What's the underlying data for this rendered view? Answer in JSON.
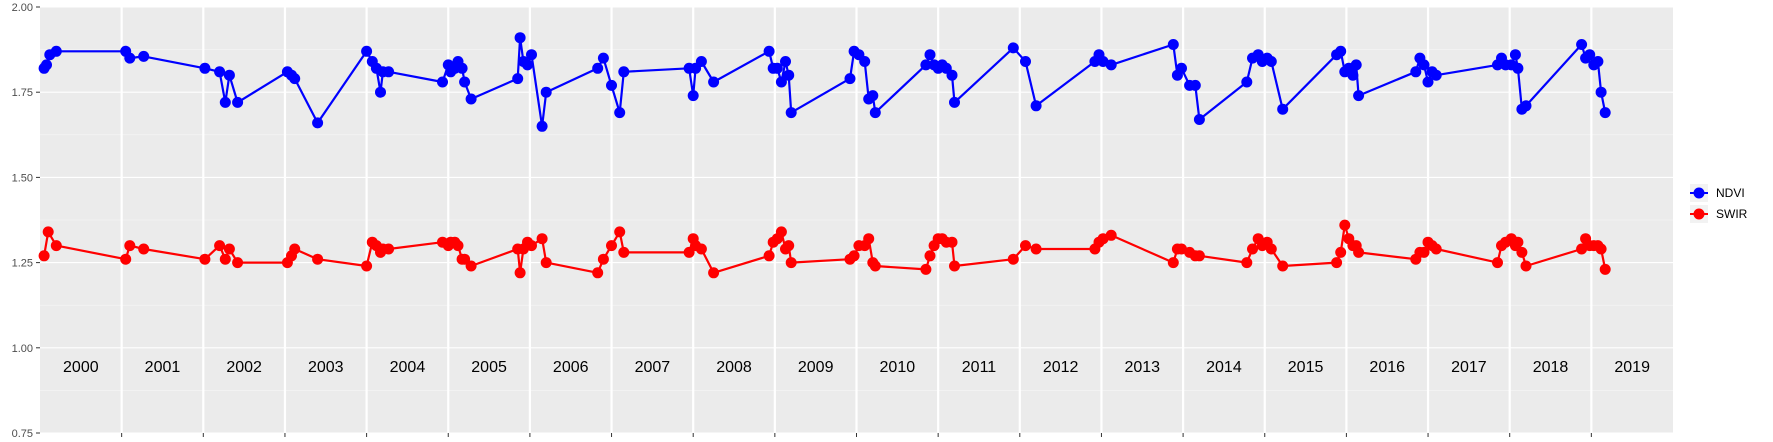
{
  "chart_data": {
    "type": "line",
    "title": "",
    "xlabel": "",
    "ylabel": "",
    "ylim": [
      0.75,
      2.0
    ],
    "y_ticks": [
      "0.75",
      "1.00",
      "1.25",
      "1.50",
      "1.75",
      "2.00"
    ],
    "x_range": [
      2000.0,
      2020.0
    ],
    "years": [
      "2000",
      "2001",
      "2002",
      "2003",
      "2004",
      "2005",
      "2006",
      "2007",
      "2008",
      "2009",
      "2010",
      "2011",
      "2012",
      "2013",
      "2014",
      "2015",
      "2016",
      "2017",
      "2018",
      "2019"
    ],
    "grid": true,
    "legend_position": "right",
    "series": [
      {
        "name": "NDVI",
        "color": "#0000ff",
        "points": [
          [
            2000.05,
            1.82
          ],
          [
            2000.08,
            1.83
          ],
          [
            2000.12,
            1.86
          ],
          [
            2000.2,
            1.87
          ],
          [
            2001.05,
            1.87
          ],
          [
            2001.1,
            1.85
          ],
          [
            2001.27,
            1.855
          ],
          [
            2002.02,
            1.82
          ],
          [
            2002.2,
            1.81
          ],
          [
            2002.27,
            1.72
          ],
          [
            2002.32,
            1.8
          ],
          [
            2002.42,
            1.72
          ],
          [
            2003.03,
            1.81
          ],
          [
            2003.08,
            1.8
          ],
          [
            2003.12,
            1.79
          ],
          [
            2003.4,
            1.66
          ],
          [
            2004.0,
            1.87
          ],
          [
            2004.07,
            1.84
          ],
          [
            2004.12,
            1.82
          ],
          [
            2004.17,
            1.75
          ],
          [
            2004.2,
            1.81
          ],
          [
            2004.27,
            1.81
          ],
          [
            2004.93,
            1.78
          ],
          [
            2005.0,
            1.83
          ],
          [
            2005.03,
            1.81
          ],
          [
            2005.08,
            1.82
          ],
          [
            2005.12,
            1.84
          ],
          [
            2005.17,
            1.82
          ],
          [
            2005.2,
            1.78
          ],
          [
            2005.28,
            1.73
          ],
          [
            2005.85,
            1.79
          ],
          [
            2005.88,
            1.91
          ],
          [
            2005.92,
            1.84
          ],
          [
            2005.97,
            1.83
          ],
          [
            2006.02,
            1.86
          ],
          [
            2006.15,
            1.65
          ],
          [
            2006.2,
            1.75
          ],
          [
            2006.83,
            1.82
          ],
          [
            2006.9,
            1.85
          ],
          [
            2007.0,
            1.77
          ],
          [
            2007.1,
            1.69
          ],
          [
            2007.15,
            1.81
          ],
          [
            2007.95,
            1.82
          ],
          [
            2008.0,
            1.74
          ],
          [
            2008.03,
            1.82
          ],
          [
            2008.1,
            1.84
          ],
          [
            2008.25,
            1.78
          ],
          [
            2008.93,
            1.87
          ],
          [
            2008.98,
            1.82
          ],
          [
            2009.03,
            1.82
          ],
          [
            2009.08,
            1.78
          ],
          [
            2009.13,
            1.84
          ],
          [
            2009.17,
            1.8
          ],
          [
            2009.2,
            1.69
          ],
          [
            2009.92,
            1.79
          ],
          [
            2009.97,
            1.87
          ],
          [
            2010.03,
            1.86
          ],
          [
            2010.1,
            1.84
          ],
          [
            2010.15,
            1.73
          ],
          [
            2010.2,
            1.74
          ],
          [
            2010.23,
            1.69
          ],
          [
            2010.85,
            1.83
          ],
          [
            2010.9,
            1.86
          ],
          [
            2010.95,
            1.83
          ],
          [
            2011.0,
            1.82
          ],
          [
            2011.05,
            1.83
          ],
          [
            2011.1,
            1.82
          ],
          [
            2011.17,
            1.8
          ],
          [
            2011.2,
            1.72
          ],
          [
            2011.92,
            1.88
          ],
          [
            2012.07,
            1.84
          ],
          [
            2012.2,
            1.71
          ],
          [
            2012.92,
            1.84
          ],
          [
            2012.97,
            1.86
          ],
          [
            2013.02,
            1.84
          ],
          [
            2013.12,
            1.83
          ],
          [
            2013.88,
            1.89
          ],
          [
            2013.93,
            1.8
          ],
          [
            2013.98,
            1.82
          ],
          [
            2014.08,
            1.77
          ],
          [
            2014.15,
            1.77
          ],
          [
            2014.2,
            1.67
          ],
          [
            2014.78,
            1.78
          ],
          [
            2014.85,
            1.85
          ],
          [
            2014.92,
            1.86
          ],
          [
            2014.97,
            1.84
          ],
          [
            2015.03,
            1.85
          ],
          [
            2015.08,
            1.84
          ],
          [
            2015.22,
            1.7
          ],
          [
            2015.88,
            1.86
          ],
          [
            2015.93,
            1.87
          ],
          [
            2015.98,
            1.81
          ],
          [
            2016.03,
            1.82
          ],
          [
            2016.08,
            1.8
          ],
          [
            2016.12,
            1.83
          ],
          [
            2016.15,
            1.74
          ],
          [
            2016.85,
            1.81
          ],
          [
            2016.9,
            1.85
          ],
          [
            2016.95,
            1.83
          ],
          [
            2017.0,
            1.78
          ],
          [
            2017.05,
            1.81
          ],
          [
            2017.1,
            1.8
          ],
          [
            2017.85,
            1.83
          ],
          [
            2017.9,
            1.85
          ],
          [
            2017.95,
            1.83
          ],
          [
            2018.02,
            1.83
          ],
          [
            2018.07,
            1.86
          ],
          [
            2018.1,
            1.82
          ],
          [
            2018.15,
            1.7
          ],
          [
            2018.2,
            1.71
          ],
          [
            2018.88,
            1.89
          ],
          [
            2018.93,
            1.85
          ],
          [
            2018.98,
            1.86
          ],
          [
            2019.03,
            1.83
          ],
          [
            2019.08,
            1.84
          ],
          [
            2019.12,
            1.75
          ],
          [
            2019.17,
            1.69
          ]
        ]
      },
      {
        "name": "SWIR",
        "color": "#ff0000",
        "points": [
          [
            2000.05,
            1.27
          ],
          [
            2000.1,
            1.34
          ],
          [
            2000.2,
            1.3
          ],
          [
            2001.05,
            1.26
          ],
          [
            2001.1,
            1.3
          ],
          [
            2001.27,
            1.29
          ],
          [
            2002.02,
            1.26
          ],
          [
            2002.2,
            1.3
          ],
          [
            2002.27,
            1.26
          ],
          [
            2002.32,
            1.29
          ],
          [
            2002.42,
            1.25
          ],
          [
            2003.03,
            1.25
          ],
          [
            2003.08,
            1.27
          ],
          [
            2003.12,
            1.29
          ],
          [
            2003.4,
            1.26
          ],
          [
            2004.0,
            1.24
          ],
          [
            2004.07,
            1.31
          ],
          [
            2004.12,
            1.3
          ],
          [
            2004.17,
            1.28
          ],
          [
            2004.2,
            1.29
          ],
          [
            2004.27,
            1.29
          ],
          [
            2004.93,
            1.31
          ],
          [
            2005.0,
            1.3
          ],
          [
            2005.03,
            1.31
          ],
          [
            2005.08,
            1.31
          ],
          [
            2005.12,
            1.3
          ],
          [
            2005.17,
            1.26
          ],
          [
            2005.2,
            1.26
          ],
          [
            2005.28,
            1.24
          ],
          [
            2005.85,
            1.29
          ],
          [
            2005.88,
            1.22
          ],
          [
            2005.92,
            1.29
          ],
          [
            2005.97,
            1.31
          ],
          [
            2006.02,
            1.3
          ],
          [
            2006.15,
            1.32
          ],
          [
            2006.2,
            1.25
          ],
          [
            2006.83,
            1.22
          ],
          [
            2006.9,
            1.26
          ],
          [
            2007.0,
            1.3
          ],
          [
            2007.1,
            1.34
          ],
          [
            2007.15,
            1.28
          ],
          [
            2007.95,
            1.28
          ],
          [
            2008.0,
            1.32
          ],
          [
            2008.03,
            1.3
          ],
          [
            2008.1,
            1.29
          ],
          [
            2008.25,
            1.22
          ],
          [
            2008.93,
            1.27
          ],
          [
            2008.98,
            1.31
          ],
          [
            2009.03,
            1.32
          ],
          [
            2009.08,
            1.34
          ],
          [
            2009.13,
            1.29
          ],
          [
            2009.17,
            1.3
          ],
          [
            2009.2,
            1.25
          ],
          [
            2009.92,
            1.26
          ],
          [
            2009.97,
            1.27
          ],
          [
            2010.03,
            1.3
          ],
          [
            2010.1,
            1.3
          ],
          [
            2010.15,
            1.32
          ],
          [
            2010.2,
            1.25
          ],
          [
            2010.23,
            1.24
          ],
          [
            2010.85,
            1.23
          ],
          [
            2010.9,
            1.27
          ],
          [
            2010.95,
            1.3
          ],
          [
            2011.0,
            1.32
          ],
          [
            2011.05,
            1.32
          ],
          [
            2011.1,
            1.31
          ],
          [
            2011.17,
            1.31
          ],
          [
            2011.2,
            1.24
          ],
          [
            2011.92,
            1.26
          ],
          [
            2012.07,
            1.3
          ],
          [
            2012.2,
            1.29
          ],
          [
            2012.92,
            1.29
          ],
          [
            2012.97,
            1.31
          ],
          [
            2013.02,
            1.32
          ],
          [
            2013.12,
            1.33
          ],
          [
            2013.88,
            1.25
          ],
          [
            2013.93,
            1.29
          ],
          [
            2013.98,
            1.29
          ],
          [
            2014.08,
            1.28
          ],
          [
            2014.15,
            1.27
          ],
          [
            2014.2,
            1.27
          ],
          [
            2014.78,
            1.25
          ],
          [
            2014.85,
            1.29
          ],
          [
            2014.92,
            1.32
          ],
          [
            2014.97,
            1.3
          ],
          [
            2015.03,
            1.31
          ],
          [
            2015.08,
            1.29
          ],
          [
            2015.22,
            1.24
          ],
          [
            2015.88,
            1.25
          ],
          [
            2015.93,
            1.28
          ],
          [
            2015.98,
            1.36
          ],
          [
            2016.03,
            1.32
          ],
          [
            2016.08,
            1.3
          ],
          [
            2016.12,
            1.3
          ],
          [
            2016.15,
            1.28
          ],
          [
            2016.85,
            1.26
          ],
          [
            2016.9,
            1.28
          ],
          [
            2016.95,
            1.28
          ],
          [
            2017.0,
            1.31
          ],
          [
            2017.05,
            1.3
          ],
          [
            2017.1,
            1.29
          ],
          [
            2017.85,
            1.25
          ],
          [
            2017.9,
            1.3
          ],
          [
            2017.95,
            1.31
          ],
          [
            2018.02,
            1.32
          ],
          [
            2018.07,
            1.3
          ],
          [
            2018.1,
            1.31
          ],
          [
            2018.15,
            1.28
          ],
          [
            2018.2,
            1.24
          ],
          [
            2018.88,
            1.29
          ],
          [
            2018.93,
            1.32
          ],
          [
            2018.98,
            1.3
          ],
          [
            2019.03,
            1.3
          ],
          [
            2019.08,
            1.3
          ],
          [
            2019.12,
            1.29
          ],
          [
            2019.17,
            1.23
          ]
        ]
      }
    ]
  }
}
